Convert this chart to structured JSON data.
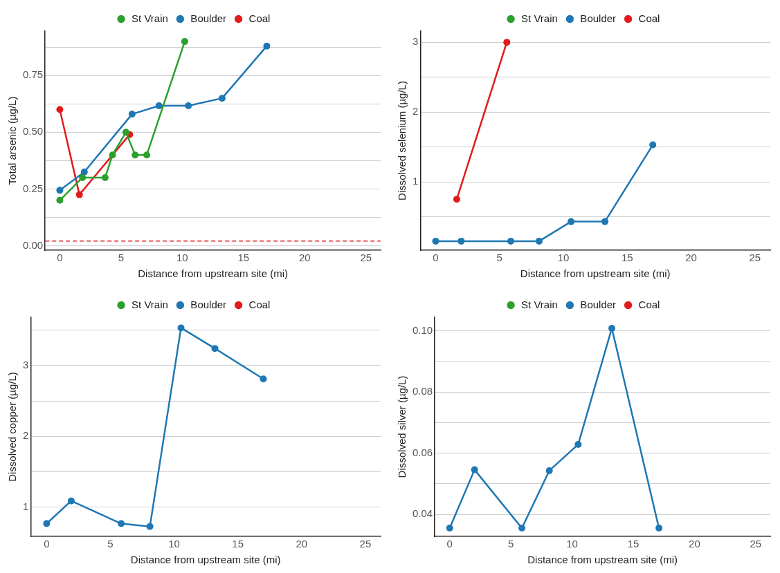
{
  "chart_data": [
    {
      "type": "line",
      "xlabel": "Distance from upstream site (mi)",
      "ylabel": "Total arsenic (µg/L)",
      "legend": "top",
      "grid": "y",
      "marker": "circle",
      "line_style": "solid",
      "xlim": [
        -1.2,
        26.2
      ],
      "xticks": [
        0,
        5,
        10,
        15,
        20,
        25
      ],
      "ylim": [
        -0.02,
        0.946
      ],
      "yticks": [
        {
          "value": 0,
          "label": "0.00"
        },
        {
          "value": 0.125,
          "label": null
        },
        0.25,
        {
          "value": 0.375,
          "label": null
        },
        {
          "value": 0.5,
          "label": "0.50"
        },
        {
          "value": 0.625,
          "label": null
        },
        0.75,
        {
          "value": 0.875,
          "label": null
        }
      ],
      "ref_lines": [
        {
          "axis": "y",
          "value": 0.02,
          "color": "#e31a1c",
          "line_style": "dashed"
        }
      ],
      "series": [
        {
          "name": "St Vrain",
          "color": "#2ca02c",
          "x": [
            0,
            1.85,
            3.7,
            4.3,
            5.4,
            6.15,
            7.1,
            10.2
          ],
          "values": [
            0.2,
            0.3,
            0.3,
            0.4,
            0.5,
            0.4,
            0.4,
            0.9
          ]
        },
        {
          "name": "Boulder",
          "color": "#1f77b4",
          "x": [
            0,
            2.0,
            5.9,
            8.1,
            10.5,
            13.25,
            16.9
          ],
          "values": [
            0.244,
            0.325,
            0.58,
            0.617,
            0.617,
            0.65,
            0.88
          ]
        },
        {
          "name": "Coal",
          "color": "#e31a1c",
          "x": [
            0,
            1.6,
            5.7
          ],
          "values": [
            0.6,
            0.225,
            0.49
          ]
        }
      ]
    },
    {
      "type": "line",
      "xlabel": "Distance from upstream site (mi)",
      "ylabel": "Dissolved selenium (µg/L)",
      "legend": "top",
      "grid": "y",
      "marker": "circle",
      "line_style": "solid",
      "xlim": [
        -1.2,
        26.2
      ],
      "xticks": [
        0,
        5,
        10,
        15,
        20,
        25
      ],
      "ylim": [
        0.02,
        3.16
      ],
      "yticks": [
        {
          "value": 0.5,
          "label": null
        },
        1,
        {
          "value": 1.5,
          "label": null
        },
        2,
        {
          "value": 2.5,
          "label": null
        },
        3
      ],
      "series": [
        {
          "name": "St Vrain",
          "color": "#2ca02c"
        },
        {
          "name": "Boulder",
          "color": "#1f77b4",
          "x": [
            0,
            2.0,
            5.88,
            8.1,
            10.6,
            13.25,
            17.0
          ],
          "values": [
            0.15,
            0.15,
            0.15,
            0.15,
            0.43,
            0.43,
            1.53
          ]
        },
        {
          "name": "Coal",
          "color": "#e31a1c",
          "x": [
            1.65,
            5.57
          ],
          "values": [
            0.75,
            3.0
          ]
        }
      ]
    },
    {
      "type": "line",
      "xlabel": "Distance from upstream site (mi)",
      "ylabel": "Dissolved copper (µg/L)",
      "legend": "top",
      "grid": "y",
      "marker": "circle",
      "line_style": "solid",
      "xlim": [
        -1.25,
        26.2
      ],
      "xticks": [
        0,
        5,
        10,
        15,
        20,
        25
      ],
      "ylim": [
        0.59,
        3.68
      ],
      "yticks": [
        1,
        {
          "value": 1.5,
          "label": null
        },
        2,
        {
          "value": 2.5,
          "label": null
        },
        3,
        {
          "value": 3.5,
          "label": null
        }
      ],
      "series": [
        {
          "name": "St Vrain",
          "color": "#2ca02c"
        },
        {
          "name": "Boulder",
          "color": "#1f77b4",
          "x": [
            0,
            1.93,
            5.85,
            8.1,
            10.54,
            13.2,
            17.0
          ],
          "values": [
            0.77,
            1.09,
            0.77,
            0.73,
            3.53,
            3.24,
            2.81
          ]
        },
        {
          "name": "Coal",
          "color": "#e31a1c"
        }
      ]
    },
    {
      "type": "line",
      "xlabel": "Distance from upstream site (mi)",
      "ylabel": "Dissolved silver (µg/L)",
      "legend": "top",
      "grid": "y",
      "marker": "circle",
      "line_style": "solid",
      "xlim": [
        -1.22,
        26.2
      ],
      "xticks": [
        0,
        5,
        10,
        15,
        20,
        25
      ],
      "ylim": [
        0.0328,
        0.1045
      ],
      "yticks": [
        0.04,
        {
          "value": 0.05,
          "label": null
        },
        {
          "value": 0.06,
          "label": "0.06"
        },
        {
          "value": 0.07,
          "label": null
        },
        {
          "value": 0.08,
          "label": "0.08"
        },
        {
          "value": 0.09,
          "label": null
        },
        {
          "value": 0.1,
          "label": "0.10"
        }
      ],
      "series": [
        {
          "name": "St Vrain",
          "color": "#2ca02c"
        },
        {
          "name": "Boulder",
          "color": "#1f77b4",
          "x": [
            0,
            2.03,
            5.9,
            8.14,
            10.5,
            13.25,
            17.1
          ],
          "values": [
            0.0355,
            0.0546,
            0.0355,
            0.0543,
            0.0629,
            0.1009,
            0.0355
          ]
        },
        {
          "name": "Coal",
          "color": "#e31a1c"
        }
      ]
    }
  ]
}
